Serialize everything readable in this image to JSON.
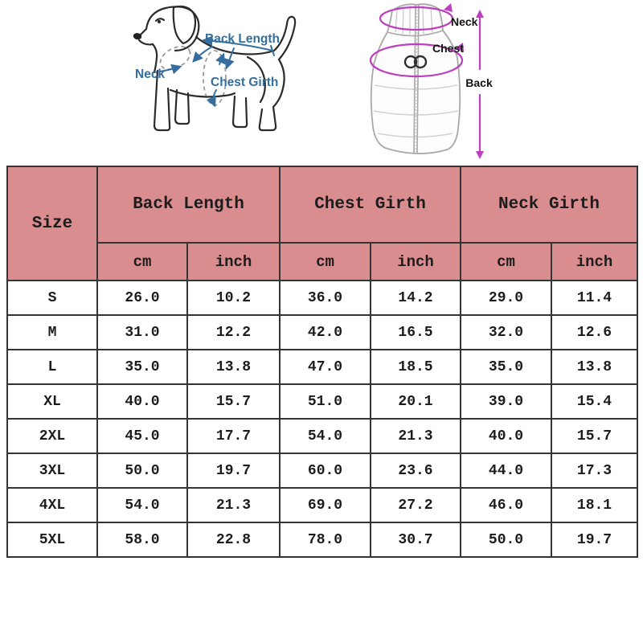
{
  "diagram": {
    "dog": {
      "labels": {
        "back_length": "Back Length",
        "neck": "Neck",
        "chest_girth": "Chest Girth"
      },
      "annotation_color": "#336e9e"
    },
    "vest": {
      "labels": {
        "neck": "Neck",
        "chest": "Chest",
        "back": "Back"
      },
      "annotation_color": "#bb3fbf"
    }
  },
  "size_chart": {
    "colors": {
      "header_bg": "#d98d8f",
      "border": "#343434",
      "text": "#1c1c1c"
    },
    "header": {
      "size": "Size",
      "groups": [
        {
          "label": "Back Length"
        },
        {
          "label": "Chest Girth"
        },
        {
          "label": "Neck Girth"
        }
      ],
      "units": {
        "cm": "cm",
        "inch": "inch"
      }
    },
    "rows": [
      {
        "size": "S",
        "back_cm": "26.0",
        "back_in": "10.2",
        "chest_cm": "36.0",
        "chest_in": "14.2",
        "neck_cm": "29.0",
        "neck_in": "11.4"
      },
      {
        "size": "M",
        "back_cm": "31.0",
        "back_in": "12.2",
        "chest_cm": "42.0",
        "chest_in": "16.5",
        "neck_cm": "32.0",
        "neck_in": "12.6"
      },
      {
        "size": "L",
        "back_cm": "35.0",
        "back_in": "13.8",
        "chest_cm": "47.0",
        "chest_in": "18.5",
        "neck_cm": "35.0",
        "neck_in": "13.8"
      },
      {
        "size": "XL",
        "back_cm": "40.0",
        "back_in": "15.7",
        "chest_cm": "51.0",
        "chest_in": "20.1",
        "neck_cm": "39.0",
        "neck_in": "15.4"
      },
      {
        "size": "2XL",
        "back_cm": "45.0",
        "back_in": "17.7",
        "chest_cm": "54.0",
        "chest_in": "21.3",
        "neck_cm": "40.0",
        "neck_in": "15.7"
      },
      {
        "size": "3XL",
        "back_cm": "50.0",
        "back_in": "19.7",
        "chest_cm": "60.0",
        "chest_in": "23.6",
        "neck_cm": "44.0",
        "neck_in": "17.3"
      },
      {
        "size": "4XL",
        "back_cm": "54.0",
        "back_in": "21.3",
        "chest_cm": "69.0",
        "chest_in": "27.2",
        "neck_cm": "46.0",
        "neck_in": "18.1"
      },
      {
        "size": "5XL",
        "back_cm": "58.0",
        "back_in": "22.8",
        "chest_cm": "78.0",
        "chest_in": "30.7",
        "neck_cm": "50.0",
        "neck_in": "19.7"
      }
    ]
  },
  "chart_data": {
    "type": "table",
    "columns": [
      "Size",
      "Back Length cm",
      "Back Length inch",
      "Chest Girth cm",
      "Chest Girth inch",
      "Neck Girth cm",
      "Neck Girth inch"
    ],
    "rows": [
      [
        "S",
        26.0,
        10.2,
        36.0,
        14.2,
        29.0,
        11.4
      ],
      [
        "M",
        31.0,
        12.2,
        42.0,
        16.5,
        32.0,
        12.6
      ],
      [
        "L",
        35.0,
        13.8,
        47.0,
        18.5,
        35.0,
        13.8
      ],
      [
        "XL",
        40.0,
        15.7,
        51.0,
        20.1,
        39.0,
        15.4
      ],
      [
        "2XL",
        45.0,
        17.7,
        54.0,
        21.3,
        40.0,
        15.7
      ],
      [
        "3XL",
        50.0,
        19.7,
        60.0,
        23.6,
        44.0,
        17.3
      ],
      [
        "4XL",
        54.0,
        21.3,
        69.0,
        27.2,
        46.0,
        18.1
      ],
      [
        "5XL",
        58.0,
        22.8,
        78.0,
        30.7,
        50.0,
        19.7
      ]
    ]
  }
}
